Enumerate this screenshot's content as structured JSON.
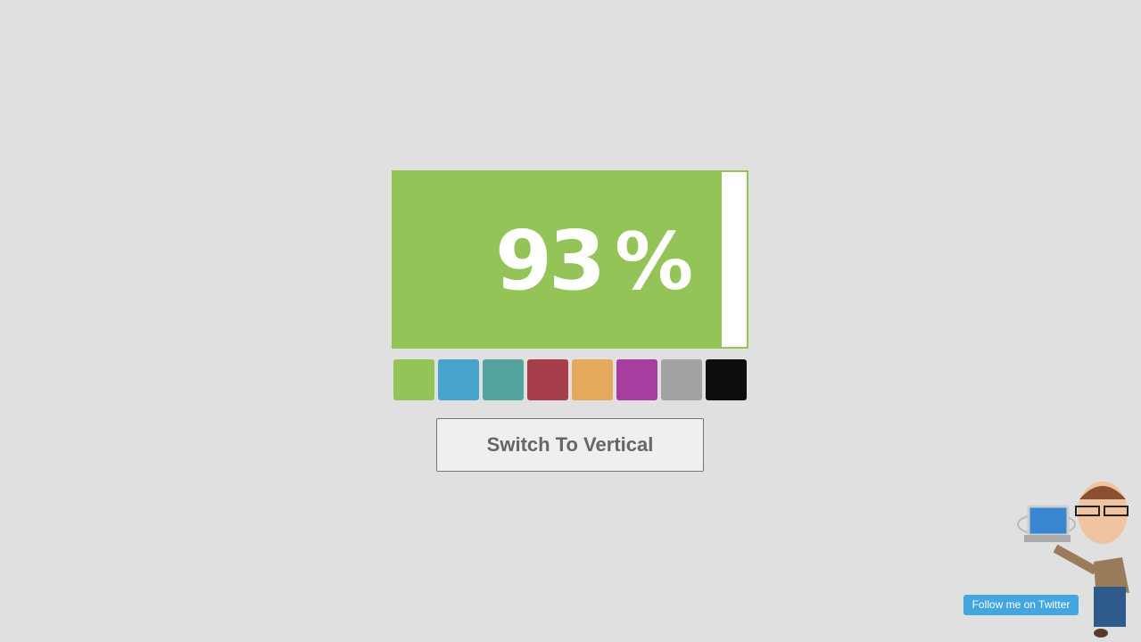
{
  "progress": {
    "value": 93,
    "value_label": "93",
    "unit": "%",
    "fill_color": "#94c458"
  },
  "swatches": [
    {
      "name": "green",
      "color": "#94c458"
    },
    {
      "name": "blue",
      "color": "#47a5cd"
    },
    {
      "name": "teal",
      "color": "#53a39f"
    },
    {
      "name": "red",
      "color": "#a63f4b"
    },
    {
      "name": "orange",
      "color": "#e3aa5b"
    },
    {
      "name": "purple",
      "color": "#a73d9f"
    },
    {
      "name": "gray",
      "color": "#a2a2a2"
    },
    {
      "name": "black",
      "color": "#0e0e0e"
    }
  ],
  "switch_button": {
    "label": "Switch To Vertical"
  },
  "twitter": {
    "label": "Follow me on Twitter"
  }
}
